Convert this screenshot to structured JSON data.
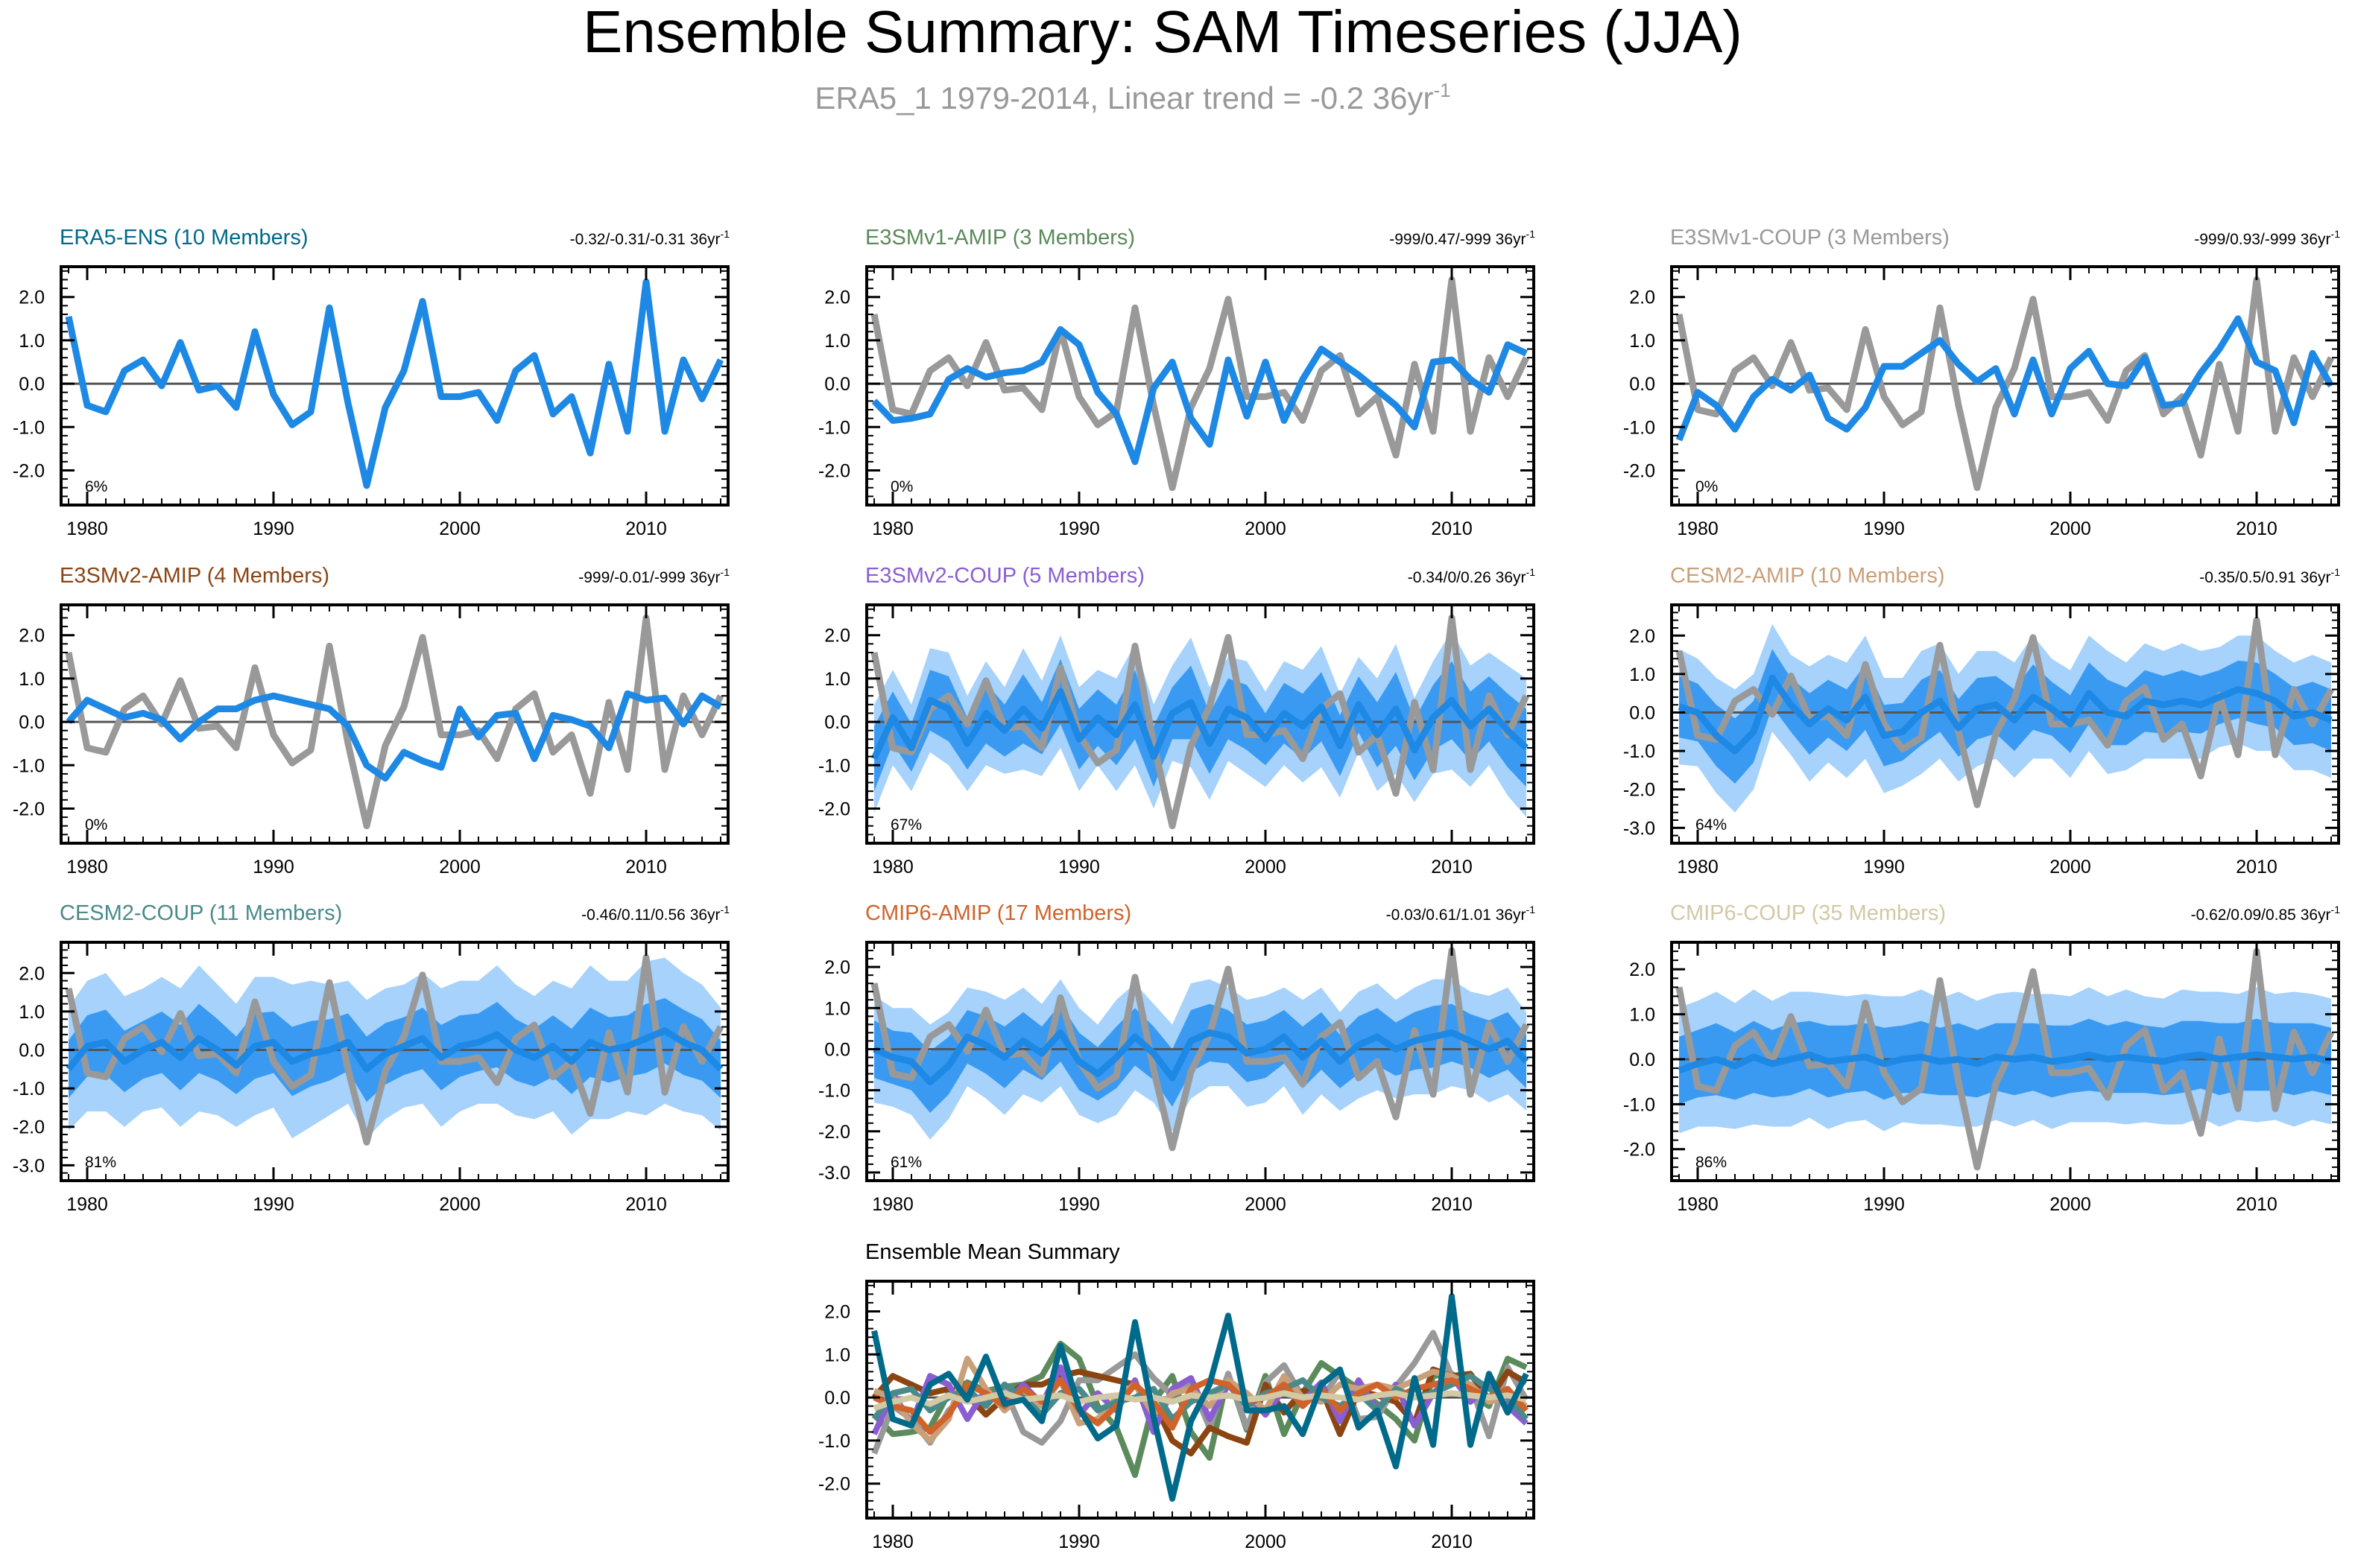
{
  "figure": {
    "title": "Ensemble Summary: SAM Timeseries (JJA)",
    "subtitle": "ERA5_1 1979-2014, Linear trend = -0.2 36yr",
    "subtitle_exp": "-1"
  },
  "colors": {
    "obs": "#999999",
    "ens_mean": "#1e88e5",
    "band_inner": "#3a9af2",
    "band_outer": "#a6d2fb",
    "zero_line": "#555555"
  },
  "chart_data": {
    "type": "line",
    "x": [
      1979,
      1980,
      1981,
      1982,
      1983,
      1984,
      1985,
      1986,
      1987,
      1988,
      1989,
      1990,
      1991,
      1992,
      1993,
      1994,
      1995,
      1996,
      1997,
      1998,
      1999,
      2000,
      2001,
      2002,
      2003,
      2004,
      2005,
      2006,
      2007,
      2008,
      2009,
      2010,
      2011,
      2012,
      2013,
      2014
    ],
    "x_ticks": [
      "1980",
      "1990",
      "2000",
      "2010"
    ],
    "observed": [
      1.6,
      -0.6,
      -0.7,
      0.3,
      0.6,
      -0.05,
      0.95,
      -0.15,
      -0.1,
      -0.6,
      1.25,
      -0.3,
      -0.95,
      -0.65,
      1.75,
      -0.5,
      -2.4,
      -0.55,
      0.35,
      1.95,
      -0.3,
      -0.3,
      -0.2,
      -0.85,
      0.3,
      0.65,
      -0.7,
      -0.3,
      -1.65,
      0.45,
      -1.1,
      2.4,
      -1.1,
      0.6,
      -0.3,
      0.6
    ],
    "panels": [
      {
        "title": "ERA5-ENS (10 Members)",
        "title_color": "#006a8a",
        "trend": "-0.32/-0.31/-0.31 36yr",
        "trend_exp": "-1",
        "pct": "6%",
        "ylim": [
          -2.8,
          2.7
        ],
        "yticks": [
          "2.0",
          "1.0",
          "0.0",
          "-1.0",
          "-2.0"
        ],
        "band": "none",
        "mean": [
          1.55,
          -0.5,
          -0.65,
          0.3,
          0.55,
          -0.05,
          0.95,
          -0.15,
          -0.05,
          -0.55,
          1.2,
          -0.25,
          -0.95,
          -0.65,
          1.75,
          -0.45,
          -2.35,
          -0.55,
          0.3,
          1.9,
          -0.3,
          -0.3,
          -0.2,
          -0.85,
          0.3,
          0.65,
          -0.7,
          -0.3,
          -1.6,
          0.45,
          -1.1,
          2.35,
          -1.1,
          0.55,
          -0.35,
          0.55
        ]
      },
      {
        "title": "E3SMv1-AMIP (3 Members)",
        "title_color": "#5b8a5b",
        "trend": "-999/0.47/-999 36yr",
        "trend_exp": "-1",
        "pct": "0%",
        "ylim": [
          -2.8,
          2.7
        ],
        "yticks": [
          "2.0",
          "1.0",
          "0.0",
          "-1.0",
          "-2.0"
        ],
        "band": "none",
        "mean": [
          -0.4,
          -0.85,
          -0.8,
          -0.7,
          0.1,
          0.35,
          0.15,
          0.25,
          0.3,
          0.5,
          1.25,
          0.9,
          -0.2,
          -0.7,
          -1.8,
          -0.1,
          0.5,
          -0.8,
          -1.4,
          0.55,
          -0.75,
          0.5,
          -0.85,
          0.1,
          0.8,
          0.5,
          0.2,
          -0.15,
          -0.5,
          -1.0,
          0.5,
          0.55,
          0.1,
          -0.2,
          0.9,
          0.7
        ]
      },
      {
        "title": "E3SMv1-COUP (3 Members)",
        "title_color": "#999999",
        "trend": "-999/0.93/-999 36yr",
        "trend_exp": "-1",
        "pct": "0%",
        "ylim": [
          -2.8,
          2.7
        ],
        "yticks": [
          "2.0",
          "1.0",
          "0.0",
          "-1.0",
          "-2.0"
        ],
        "band": "none",
        "mean": [
          -1.3,
          -0.2,
          -0.5,
          -1.05,
          -0.3,
          0.1,
          -0.15,
          0.2,
          -0.8,
          -1.05,
          -0.55,
          0.4,
          0.4,
          0.7,
          1.0,
          0.45,
          0.05,
          0.35,
          -0.7,
          0.55,
          -0.7,
          0.35,
          0.75,
          0.0,
          -0.05,
          0.6,
          -0.5,
          -0.45,
          0.25,
          0.8,
          1.5,
          0.5,
          0.3,
          -0.9,
          0.7,
          -0.05
        ]
      },
      {
        "title": "E3SMv2-AMIP (4 Members)",
        "title_color": "#8b4513",
        "trend": "-999/-0.01/-999 36yr",
        "trend_exp": "-1",
        "pct": "0%",
        "ylim": [
          -2.8,
          2.7
        ],
        "yticks": [
          "2.0",
          "1.0",
          "0.0",
          "-1.0",
          "-2.0"
        ],
        "band": "none",
        "mean": [
          0.0,
          0.5,
          0.3,
          0.1,
          0.2,
          0.05,
          -0.4,
          0.0,
          0.3,
          0.3,
          0.5,
          0.6,
          0.5,
          0.4,
          0.3,
          -0.1,
          -1.0,
          -1.3,
          -0.7,
          -0.9,
          -1.05,
          0.3,
          -0.35,
          0.15,
          0.2,
          -0.85,
          0.15,
          0.05,
          -0.1,
          -0.6,
          0.65,
          0.5,
          0.55,
          -0.05,
          0.6,
          0.35
        ]
      },
      {
        "title": "E3SMv2-COUP (5 Members)",
        "title_color": "#8a5ed2",
        "trend": "-0.34/0/0.26 36yr",
        "trend_exp": "-1",
        "pct": "67%",
        "ylim": [
          -2.8,
          2.7
        ],
        "yticks": [
          "2.0",
          "1.0",
          "0.0",
          "-1.0",
          "-2.0"
        ],
        "band": "five",
        "mean": [
          -0.85,
          0.1,
          -0.6,
          0.5,
          0.3,
          -0.5,
          0.2,
          -0.2,
          0.3,
          -0.15,
          0.7,
          -0.4,
          0.1,
          -0.3,
          0.4,
          -0.8,
          0.2,
          0.45,
          -0.5,
          0.3,
          0.1,
          -0.4,
          0.2,
          -0.1,
          0.35,
          -0.55,
          0.4,
          -0.3,
          0.3,
          -0.65,
          0.1,
          0.5,
          -0.1,
          0.3,
          -0.2,
          -0.6
        ],
        "outer_half": [
          1.25,
          1.1,
          1.0,
          1.2,
          1.3,
          1.1,
          1.2,
          1.0,
          1.4,
          1.1,
          1.3,
          1.2,
          1.1,
          1.3,
          1.4,
          1.2,
          1.1,
          1.5,
          1.3,
          1.2,
          1.3,
          1.1,
          1.2,
          1.3,
          1.4,
          1.2,
          1.1,
          1.3,
          1.5,
          1.2,
          1.3,
          1.6,
          1.4,
          1.3,
          1.5,
          1.6
        ],
        "inner_half": [
          0.75,
          0.6,
          0.55,
          0.7,
          0.75,
          0.6,
          0.7,
          0.6,
          0.8,
          0.6,
          0.75,
          0.7,
          0.65,
          0.7,
          0.8,
          0.7,
          0.6,
          0.85,
          0.7,
          0.7,
          0.75,
          0.6,
          0.7,
          0.75,
          0.8,
          0.7,
          0.65,
          0.75,
          0.85,
          0.7,
          0.75,
          0.9,
          0.8,
          0.75,
          0.85,
          0.9
        ]
      },
      {
        "title": "CESM2-AMIP (10 Members)",
        "title_color": "#c8a07a",
        "trend": "-0.35/0.5/0.91 36yr",
        "trend_exp": "-1",
        "pct": "64%",
        "ylim": [
          -3.4,
          2.8
        ],
        "yticks": [
          "2.0",
          "1.0",
          "0.0",
          "-1.0",
          "-2.0",
          "-3.0"
        ],
        "band": "cesm",
        "mean": [
          0.15,
          0.0,
          -0.6,
          -1.0,
          -0.5,
          0.9,
          0.2,
          -0.3,
          0.1,
          -0.2,
          0.4,
          -0.6,
          -0.5,
          0.0,
          0.3,
          -0.4,
          0.1,
          0.2,
          -0.2,
          0.4,
          0.1,
          -0.3,
          0.5,
          0.0,
          -0.1,
          0.3,
          0.2,
          0.3,
          0.2,
          0.4,
          0.6,
          0.5,
          0.3,
          -0.1,
          0.0,
          -0.2
        ],
        "outer_half": [
          1.5,
          1.4,
          1.5,
          1.6,
          1.5,
          1.4,
          1.3,
          1.5,
          1.4,
          1.5,
          1.6,
          1.5,
          1.4,
          1.6,
          1.5,
          1.4,
          1.5,
          1.4,
          1.5,
          1.6,
          1.3,
          1.4,
          1.5,
          1.6,
          1.4,
          1.5,
          1.4,
          1.5,
          1.4,
          1.3,
          1.4,
          1.5,
          1.3,
          1.4,
          1.5,
          1.5
        ],
        "inner_half": [
          0.8,
          0.75,
          0.8,
          0.85,
          0.8,
          0.75,
          0.7,
          0.8,
          0.75,
          0.8,
          0.85,
          0.8,
          0.75,
          0.85,
          0.8,
          0.75,
          0.8,
          0.75,
          0.8,
          0.85,
          0.7,
          0.75,
          0.8,
          0.85,
          0.75,
          0.8,
          0.75,
          0.8,
          0.75,
          0.7,
          0.75,
          0.8,
          0.7,
          0.75,
          0.8,
          0.8
        ]
      },
      {
        "title": "CESM2-COUP (11 Members)",
        "title_color": "#4a8a8a",
        "trend": "-0.46/0.11/0.56 36yr",
        "trend_exp": "-1",
        "pct": "81%",
        "ylim": [
          -3.4,
          2.8
        ],
        "yticks": [
          "2.0",
          "1.0",
          "0.0",
          "-1.0",
          "-2.0",
          "-3.0"
        ],
        "band": "cesm",
        "mean": [
          -0.5,
          0.1,
          0.2,
          -0.3,
          0.0,
          0.2,
          -0.2,
          0.3,
          0.0,
          -0.4,
          0.1,
          0.2,
          -0.3,
          -0.1,
          0.0,
          0.2,
          -0.5,
          -0.1,
          0.1,
          0.3,
          -0.2,
          0.1,
          0.2,
          0.4,
          0.0,
          -0.2,
          0.1,
          -0.3,
          0.2,
          0.0,
          0.1,
          0.3,
          0.5,
          0.2,
          0.0,
          -0.5
        ],
        "outer_half": [
          1.6,
          1.7,
          1.8,
          1.7,
          1.6,
          1.7,
          1.8,
          1.9,
          1.7,
          1.6,
          1.8,
          1.7,
          2.0,
          1.9,
          1.7,
          1.6,
          1.8,
          1.7,
          1.6,
          1.7,
          1.8,
          1.7,
          1.6,
          1.8,
          1.7,
          1.6,
          1.7,
          1.9,
          2.0,
          1.8,
          1.7,
          2.0,
          1.9,
          1.8,
          1.7,
          1.6
        ],
        "inner_half": [
          0.75,
          0.8,
          0.85,
          0.8,
          0.75,
          0.8,
          0.85,
          0.9,
          0.8,
          0.75,
          0.85,
          0.8,
          0.9,
          0.85,
          0.8,
          0.75,
          0.85,
          0.8,
          0.75,
          0.8,
          0.85,
          0.8,
          0.75,
          0.85,
          0.8,
          0.75,
          0.8,
          0.85,
          0.9,
          0.85,
          0.8,
          0.9,
          0.85,
          0.85,
          0.8,
          0.75
        ]
      },
      {
        "title": "CMIP6-AMIP (17 Members)",
        "title_color": "#d0622a",
        "trend": "-0.03/0.61/1.01 36yr",
        "trend_exp": "-1",
        "pct": "61%",
        "ylim": [
          -3.2,
          2.6
        ],
        "yticks": [
          "2.0",
          "1.0",
          "0.0",
          "-1.0",
          "-2.0",
          "-3.0"
        ],
        "band": "cmip",
        "mean": [
          0.0,
          -0.2,
          -0.3,
          -0.8,
          -0.4,
          0.3,
          0.1,
          -0.2,
          0.2,
          -0.1,
          0.4,
          -0.3,
          -0.6,
          -0.2,
          0.3,
          -0.1,
          -0.7,
          0.2,
          0.4,
          0.3,
          -0.1,
          0.0,
          0.3,
          -0.2,
          0.2,
          -0.3,
          0.1,
          0.3,
          0.0,
          0.2,
          0.3,
          0.4,
          0.2,
          0.0,
          0.2,
          -0.3
        ],
        "outer_half": [
          1.3,
          1.2,
          1.3,
          1.4,
          1.3,
          1.2,
          1.3,
          1.4,
          1.3,
          1.2,
          1.3,
          1.3,
          1.2,
          1.4,
          1.3,
          1.2,
          1.3,
          1.4,
          1.3,
          1.2,
          1.3,
          1.3,
          1.2,
          1.4,
          1.3,
          1.2,
          1.3,
          1.3,
          1.2,
          1.3,
          1.4,
          1.3,
          1.2,
          1.3,
          1.3,
          1.2
        ],
        "inner_half": [
          0.7,
          0.65,
          0.7,
          0.75,
          0.7,
          0.65,
          0.7,
          0.75,
          0.7,
          0.65,
          0.7,
          0.7,
          0.65,
          0.75,
          0.7,
          0.65,
          0.7,
          0.75,
          0.7,
          0.65,
          0.7,
          0.7,
          0.65,
          0.75,
          0.7,
          0.65,
          0.7,
          0.7,
          0.65,
          0.7,
          0.75,
          0.7,
          0.65,
          0.7,
          0.7,
          0.65
        ]
      },
      {
        "title": "CMIP6-COUP (35 Members)",
        "title_color": "#d2c9a5",
        "trend": "-0.62/0.09/0.85 36yr",
        "trend_exp": "-1",
        "pct": "86%",
        "ylim": [
          -2.7,
          2.6
        ],
        "yticks": [
          "2.0",
          "1.0",
          "0.0",
          "-1.0",
          "-2.0"
        ],
        "band": "cmip",
        "mean": [
          -0.25,
          -0.1,
          0.0,
          -0.15,
          0.05,
          -0.1,
          0.0,
          0.1,
          -0.05,
          0.0,
          0.05,
          -0.1,
          0.0,
          0.05,
          -0.05,
          0.0,
          -0.1,
          0.05,
          0.0,
          0.05,
          -0.05,
          0.0,
          0.1,
          0.0,
          0.05,
          0.0,
          -0.05,
          0.05,
          0.1,
          0.0,
          0.05,
          0.1,
          0.05,
          0.0,
          0.05,
          -0.05
        ],
        "outer_half": [
          1.4,
          1.4,
          1.5,
          1.4,
          1.5,
          1.4,
          1.5,
          1.4,
          1.5,
          1.4,
          1.4,
          1.5,
          1.4,
          1.5,
          1.4,
          1.5,
          1.4,
          1.4,
          1.5,
          1.4,
          1.5,
          1.4,
          1.5,
          1.4,
          1.5,
          1.4,
          1.4,
          1.5,
          1.4,
          1.5,
          1.4,
          1.5,
          1.4,
          1.5,
          1.4,
          1.4
        ],
        "inner_half": [
          0.75,
          0.75,
          0.8,
          0.75,
          0.8,
          0.75,
          0.8,
          0.75,
          0.8,
          0.75,
          0.75,
          0.8,
          0.75,
          0.8,
          0.75,
          0.8,
          0.75,
          0.75,
          0.8,
          0.75,
          0.8,
          0.75,
          0.8,
          0.75,
          0.8,
          0.75,
          0.75,
          0.8,
          0.75,
          0.8,
          0.75,
          0.8,
          0.75,
          0.8,
          0.75,
          0.75
        ]
      }
    ],
    "summary": {
      "title": "Ensemble Mean Summary",
      "ylim": [
        -2.8,
        2.7
      ],
      "yticks": [
        "2.0",
        "1.0",
        "0.0",
        "-1.0",
        "-2.0"
      ]
    }
  }
}
